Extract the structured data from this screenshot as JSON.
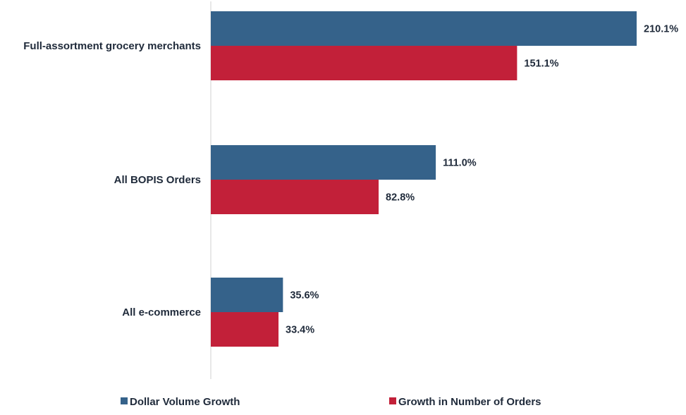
{
  "chart_data": {
    "type": "bar",
    "orientation": "horizontal",
    "categories": [
      "Full-assortment grocery merchants",
      "All BOPIS Orders",
      "All e-commerce"
    ],
    "series": [
      {
        "name": "Dollar Volume Growth",
        "values": [
          210.1,
          111.0,
          35.6
        ],
        "labels": [
          "210.1%",
          "111.0%",
          "35.6%"
        ],
        "color": "#35628a"
      },
      {
        "name": "Growth in Number of Orders",
        "values": [
          151.1,
          82.8,
          33.4
        ],
        "labels": [
          "151.1%",
          "82.8%",
          "33.4%"
        ],
        "color": "#c22039"
      }
    ],
    "xlim": [
      0,
      210.1
    ],
    "grid": false,
    "legend": "bottom",
    "axis_line_color": "#d9d9d9"
  }
}
